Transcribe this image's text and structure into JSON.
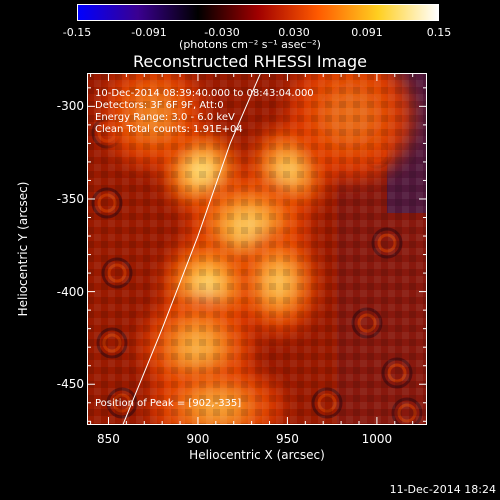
{
  "colorbar": {
    "ticks": [
      "-0.15",
      "-0.091",
      "-0.030",
      "0.030",
      "0.091",
      "0.15"
    ],
    "units": "(photons cm⁻² s⁻¹ asec⁻²)",
    "colors": [
      "#0000ff",
      "#3a0090",
      "#000000",
      "#a00000",
      "#ff5a00",
      "#ffcf20",
      "#ffffff"
    ]
  },
  "title": "Reconstructed RHESSI Image",
  "info": {
    "time_range": "10-Dec-2014 08:39:40.000 to 08:43:04.000",
    "detectors": "Detectors: 3F 6F 9F, Att:0",
    "energy": "Energy Range: 3.0 - 6.0 keV",
    "clean": "Clean     Total counts: 1.91E+04",
    "peak": "Position of Peak = [902,-335]"
  },
  "axes": {
    "xlabel": "Heliocentric X (arcsec)",
    "ylabel": "Heliocentric Y (arcsec)",
    "xrange": [
      838,
      1028
    ],
    "yrange": [
      -472,
      -282
    ],
    "xticks": [
      850,
      900,
      950,
      1000
    ],
    "yticks": [
      -300,
      -350,
      -400,
      -450
    ]
  },
  "limb": {
    "points": [
      [
        858,
        -472
      ],
      [
        880,
        -420
      ],
      [
        900,
        -370
      ],
      [
        918,
        -320
      ],
      [
        935,
        -282
      ]
    ]
  },
  "sources": [
    {
      "x": 902,
      "y": -335,
      "amp": 1.0,
      "sx": 14,
      "sy": 14
    },
    {
      "x": 950,
      "y": -335,
      "amp": 0.75,
      "sx": 14,
      "sy": 16
    },
    {
      "x": 928,
      "y": -365,
      "amp": 0.7,
      "sx": 22,
      "sy": 18
    },
    {
      "x": 905,
      "y": -398,
      "amp": 0.88,
      "sx": 16,
      "sy": 18
    },
    {
      "x": 945,
      "y": -395,
      "amp": 0.7,
      "sx": 14,
      "sy": 18
    },
    {
      "x": 900,
      "y": -430,
      "amp": 0.55,
      "sx": 20,
      "sy": 18
    },
    {
      "x": 910,
      "y": -462,
      "amp": 0.5,
      "sx": 24,
      "sy": 14
    },
    {
      "x": 875,
      "y": -305,
      "amp": 0.35,
      "sx": 18,
      "sy": 18
    },
    {
      "x": 985,
      "y": -305,
      "amp": 0.25,
      "sx": 22,
      "sy": 22
    }
  ],
  "timestamp": "11-Dec-2014 18:24"
}
